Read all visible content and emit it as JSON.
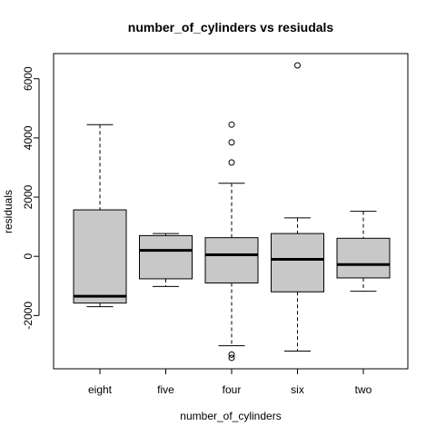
{
  "chart_data": {
    "type": "boxplot",
    "title": "number_of_cylinders  vs resiudals",
    "xlabel": "number_of_cylinders",
    "ylabel": "residuals",
    "ylim": [
      -3800,
      6850
    ],
    "yticks": [
      -2000,
      0,
      2000,
      4000,
      6000
    ],
    "yticklabels": [
      "-2000",
      "0",
      "2000",
      "4000",
      "6000"
    ],
    "categories": [
      "eight",
      "five",
      "four",
      "six",
      "two"
    ],
    "box_fill": "#c8c8c8",
    "boxes": [
      {
        "category": "eight",
        "whisker_low": -1700,
        "q1": -1580,
        "median": -1350,
        "q3": 1570,
        "whisker_high": 4450,
        "outliers": []
      },
      {
        "category": "five",
        "whisker_low": -1020,
        "q1": -760,
        "median": 200,
        "q3": 700,
        "whisker_high": 770,
        "outliers": []
      },
      {
        "category": "four",
        "whisker_low": -3020,
        "q1": -900,
        "median": 50,
        "q3": 630,
        "whisker_high": 2470,
        "outliers": [
          3170,
          3850,
          4450,
          -3320,
          -3430
        ]
      },
      {
        "category": "six",
        "whisker_low": -3200,
        "q1": -1200,
        "median": -100,
        "q3": 770,
        "whisker_high": 1300,
        "outliers": [
          6450
        ]
      },
      {
        "category": "two",
        "whisker_low": -1180,
        "q1": -730,
        "median": -280,
        "q3": 610,
        "whisker_high": 1520,
        "outliers": []
      }
    ]
  }
}
